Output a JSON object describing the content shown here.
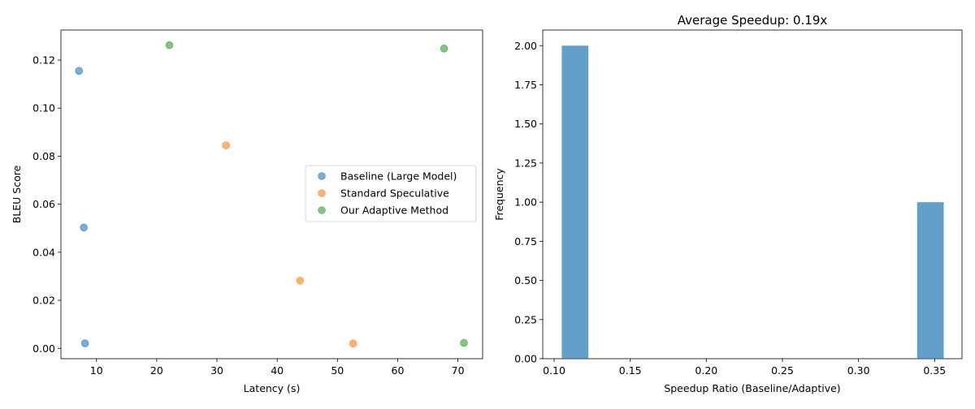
{
  "chart_data": [
    {
      "type": "scatter",
      "title": "",
      "xlabel": "Latency (s)",
      "ylabel": "BLEU Score",
      "xlim": [
        4.1,
        74.1
      ],
      "ylim": [
        -0.0043,
        0.1325
      ],
      "xticks": [
        10,
        20,
        30,
        40,
        50,
        60,
        70
      ],
      "xtick_labels": [
        "10",
        "20",
        "30",
        "40",
        "50",
        "60",
        "70"
      ],
      "yticks": [
        0,
        0.02,
        0.04,
        0.06,
        0.08,
        0.1,
        0.12
      ],
      "ytick_labels": [
        "0.00",
        "0.02",
        "0.04",
        "0.06",
        "0.08",
        "0.10",
        "0.12"
      ],
      "grid": false,
      "legend_position": "center-right",
      "series": [
        {
          "name": "Baseline (Large Model)",
          "color": "#1f77b4",
          "x": [
            7.1,
            7.9,
            8.1
          ],
          "y": [
            0.1155,
            0.0503,
            0.0021
          ]
        },
        {
          "name": "Standard Speculative",
          "color": "#ff7f0e",
          "x": [
            31.5,
            43.8,
            52.6
          ],
          "y": [
            0.0845,
            0.0282,
            0.002
          ]
        },
        {
          "name": "Our Adaptive Method",
          "color": "#2ca02c",
          "x": [
            22.1,
            67.7,
            71.0
          ],
          "y": [
            0.1262,
            0.1248,
            0.0023
          ]
        }
      ]
    },
    {
      "type": "bar",
      "subtype": "histogram",
      "title": "Average Speedup: 0.19x",
      "xlabel": "Speedup Ratio (Baseline/Adaptive)",
      "ylabel": "Frequency",
      "xlim": [
        0.0925,
        0.368
      ],
      "ylim": [
        0,
        2.1
      ],
      "xticks": [
        0.1,
        0.15,
        0.2,
        0.25,
        0.3,
        0.35
      ],
      "xtick_labels": [
        "0.10",
        "0.15",
        "0.20",
        "0.25",
        "0.30",
        "0.35"
      ],
      "yticks": [
        0,
        0.25,
        0.5,
        0.75,
        1.0,
        1.25,
        1.5,
        1.75,
        2.0
      ],
      "ytick_labels": [
        "0.00",
        "0.25",
        "0.50",
        "0.75",
        "1.00",
        "1.25",
        "1.50",
        "1.75",
        "2.00"
      ],
      "grid": false,
      "color": "#1f77b4",
      "bins": [
        {
          "start": 0.105,
          "end": 0.1225,
          "count": 2
        },
        {
          "start": 0.3385,
          "end": 0.356,
          "count": 1
        }
      ]
    }
  ]
}
